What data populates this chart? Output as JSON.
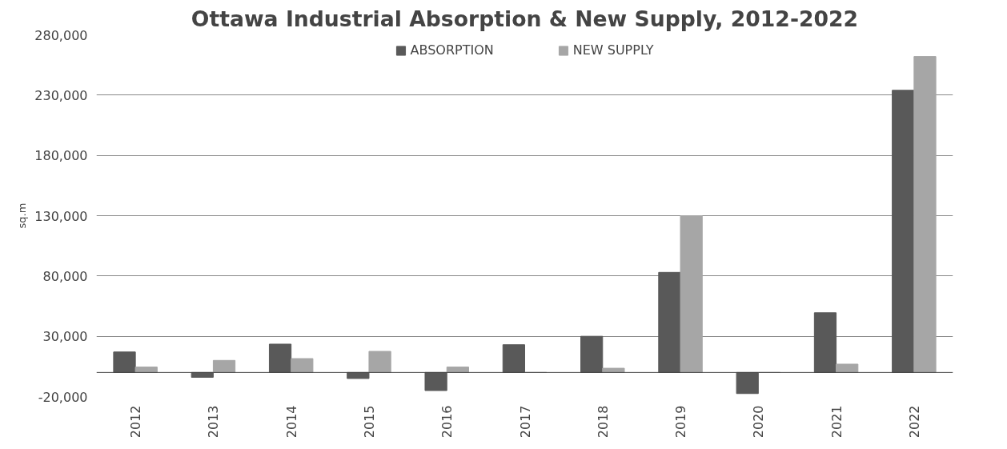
{
  "chart_data": {
    "type": "bar",
    "title": "Ottawa Industrial Absorption & New Supply, 2012-2022",
    "ylabel": "sq.m",
    "categories": [
      "2012",
      "2013",
      "2014",
      "2015",
      "2016",
      "2017",
      "2018",
      "2019",
      "2020",
      "2021",
      "2022"
    ],
    "series": [
      {
        "name": "ABSORPTION",
        "color": "#595959",
        "values": [
          17000,
          -4000,
          23500,
          -5000,
          -15000,
          23000,
          30000,
          83000,
          -17500,
          49500,
          234000
        ]
      },
      {
        "name": "NEW SUPPLY",
        "color": "#a6a6a6",
        "values": [
          4500,
          10000,
          11500,
          17500,
          4500,
          0,
          3500,
          130000,
          0,
          6900,
          262000
        ]
      }
    ],
    "ylim": [
      -20000,
      280000
    ],
    "yticks": [
      {
        "value": -20000,
        "label": "-20,000"
      },
      {
        "value": 30000,
        "label": "30,000"
      },
      {
        "value": 80000,
        "label": "80,000"
      },
      {
        "value": 130000,
        "label": "130,000"
      },
      {
        "value": 180000,
        "label": "180,000"
      },
      {
        "value": 230000,
        "label": "230,000"
      },
      {
        "value": 280000,
        "label": "280,000"
      }
    ],
    "grid": "y",
    "legend": "top"
  }
}
